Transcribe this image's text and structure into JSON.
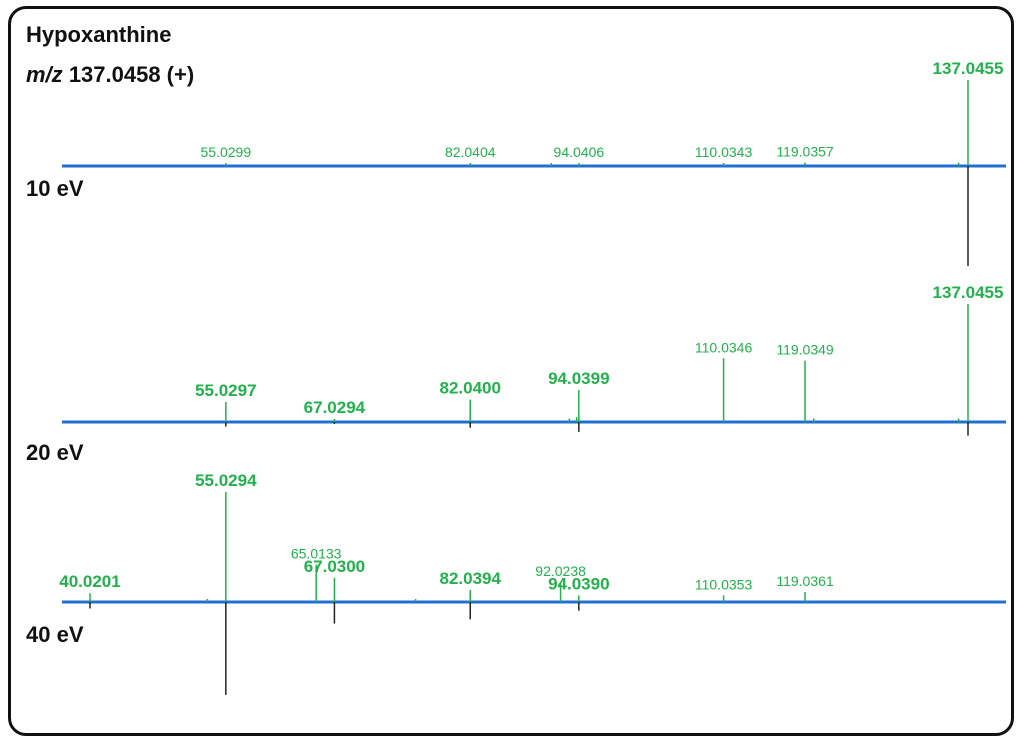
{
  "header": {
    "compound": "Hypoxanthine",
    "precursor_mz_symbol": "m/z",
    "precursor_value": "137.0458 (+)"
  },
  "colors": {
    "baseline": "#1f6fd1",
    "peak_up": "#22b14c",
    "peak_down": "#222222",
    "frame": "#111111"
  },
  "chart_data": {
    "type": "mirror-spectrum",
    "title": "Hypoxanthine",
    "xlim": [
      38,
      140
    ],
    "panels": [
      {
        "energy": "10 eV",
        "peaks_top": [
          {
            "mz": 55.0299,
            "intensity": 0.02,
            "label": "55.0299",
            "bold": false
          },
          {
            "mz": 82.0404,
            "intensity": 0.01,
            "label": "82.0404",
            "bold": false
          },
          {
            "mz": 91.0,
            "intensity": 0.01,
            "label": "",
            "bold": false
          },
          {
            "mz": 94.0406,
            "intensity": 0.02,
            "label": "94.0406",
            "bold": false
          },
          {
            "mz": 110.0343,
            "intensity": 0.03,
            "label": "110.0343",
            "bold": false
          },
          {
            "mz": 119.0357,
            "intensity": 0.04,
            "label": "119.0357",
            "bold": false
          },
          {
            "mz": 136.0,
            "intensity": 0.04,
            "label": "",
            "bold": false
          },
          {
            "mz": 137.0455,
            "intensity": 1.0,
            "label": "137.0455",
            "bold": true
          }
        ],
        "peaks_bottom": [
          {
            "mz": 137.0455,
            "intensity": 1.0
          }
        ]
      },
      {
        "energy": "20 eV",
        "peaks_top": [
          {
            "mz": 55.0297,
            "intensity": 0.17,
            "label": "55.0297",
            "bold": true
          },
          {
            "mz": 67.0294,
            "intensity": 0.02,
            "label": "67.0294",
            "bold": true
          },
          {
            "mz": 82.04,
            "intensity": 0.19,
            "label": "82.0400",
            "bold": true
          },
          {
            "mz": 93.0,
            "intensity": 0.03,
            "label": "",
            "bold": false
          },
          {
            "mz": 93.8,
            "intensity": 0.04,
            "label": "",
            "bold": false
          },
          {
            "mz": 94.0399,
            "intensity": 0.27,
            "label": "94.0399",
            "bold": true
          },
          {
            "mz": 110.0346,
            "intensity": 0.54,
            "label": "110.0346",
            "bold": false
          },
          {
            "mz": 119.0349,
            "intensity": 0.52,
            "label": "119.0349",
            "bold": false
          },
          {
            "mz": 120.0,
            "intensity": 0.03,
            "label": "",
            "bold": false
          },
          {
            "mz": 136.0,
            "intensity": 0.03,
            "label": "",
            "bold": false
          },
          {
            "mz": 137.0455,
            "intensity": 1.0,
            "label": "137.0455",
            "bold": true
          }
        ],
        "peaks_bottom": [
          {
            "mz": 55.0297,
            "intensity": 0.12
          },
          {
            "mz": 67.0294,
            "intensity": 0.05
          },
          {
            "mz": 82.04,
            "intensity": 0.15
          },
          {
            "mz": 94.0399,
            "intensity": 0.26
          },
          {
            "mz": 137.0455,
            "intensity": 0.36
          }
        ]
      },
      {
        "energy": "40 eV",
        "peaks_top": [
          {
            "mz": 40.0201,
            "intensity": 0.08,
            "label": "40.0201",
            "bold": true
          },
          {
            "mz": 53.0,
            "intensity": 0.02,
            "label": "",
            "bold": false
          },
          {
            "mz": 55.0294,
            "intensity": 1.0,
            "label": "55.0294",
            "bold": true
          },
          {
            "mz": 65.0133,
            "intensity": 0.34,
            "label": "65.0133",
            "bold": false
          },
          {
            "mz": 67.03,
            "intensity": 0.22,
            "label": "67.0300",
            "bold": true
          },
          {
            "mz": 76.0,
            "intensity": 0.01,
            "label": "",
            "bold": false
          },
          {
            "mz": 82.0394,
            "intensity": 0.11,
            "label": "82.0394",
            "bold": true
          },
          {
            "mz": 92.0238,
            "intensity": 0.18,
            "label": "92.0238",
            "bold": false
          },
          {
            "mz": 94.039,
            "intensity": 0.06,
            "label": "94.0390",
            "bold": true
          },
          {
            "mz": 110.0353,
            "intensity": 0.06,
            "label": "110.0353",
            "bold": false
          },
          {
            "mz": 119.0361,
            "intensity": 0.09,
            "label": "119.0361",
            "bold": false
          }
        ],
        "peaks_bottom": [
          {
            "mz": 40.0201,
            "intensity": 0.06
          },
          {
            "mz": 55.0294,
            "intensity": 0.86
          },
          {
            "mz": 67.03,
            "intensity": 0.2
          },
          {
            "mz": 82.0394,
            "intensity": 0.16
          },
          {
            "mz": 94.039,
            "intensity": 0.08
          }
        ]
      }
    ]
  }
}
